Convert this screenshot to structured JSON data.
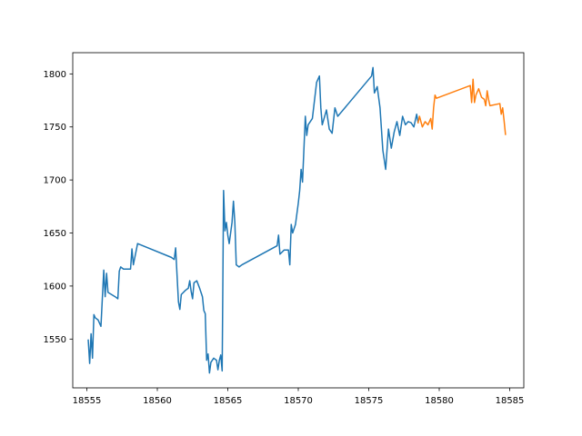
{
  "chart_data": {
    "type": "line",
    "title": "",
    "xlabel": "",
    "ylabel": "",
    "xlim": [
      18554.0,
      18586.0
    ],
    "ylim": [
      1504,
      1820
    ],
    "x_ticks": [
      18555,
      18560,
      18565,
      18570,
      18575,
      18580,
      18585
    ],
    "y_ticks": [
      1550,
      1600,
      1650,
      1700,
      1750,
      1800
    ],
    "grid": false,
    "legend": "none",
    "series": [
      {
        "color": "#1f77b4",
        "points": [
          [
            18555.1,
            1549
          ],
          [
            18555.2,
            1527
          ],
          [
            18555.3,
            1555
          ],
          [
            18555.4,
            1532
          ],
          [
            18555.5,
            1573
          ],
          [
            18555.6,
            1570
          ],
          [
            18555.8,
            1568
          ],
          [
            18556.0,
            1562
          ],
          [
            18556.2,
            1615
          ],
          [
            18556.3,
            1590
          ],
          [
            18556.4,
            1612
          ],
          [
            18556.5,
            1594
          ],
          [
            18557.0,
            1590
          ],
          [
            18557.2,
            1588
          ],
          [
            18557.3,
            1614
          ],
          [
            18557.4,
            1618
          ],
          [
            18557.6,
            1616
          ],
          [
            18558.1,
            1616
          ],
          [
            18558.2,
            1635
          ],
          [
            18558.3,
            1620
          ],
          [
            18558.6,
            1640
          ],
          [
            18561.0,
            1627
          ],
          [
            18561.2,
            1625
          ],
          [
            18561.3,
            1636
          ],
          [
            18561.4,
            1610
          ],
          [
            18561.5,
            1585
          ],
          [
            18561.6,
            1578
          ],
          [
            18561.7,
            1592
          ],
          [
            18562.0,
            1596
          ],
          [
            18562.2,
            1598
          ],
          [
            18562.3,
            1605
          ],
          [
            18562.4,
            1595
          ],
          [
            18562.5,
            1588
          ],
          [
            18562.6,
            1603
          ],
          [
            18562.8,
            1605
          ],
          [
            18563.0,
            1598
          ],
          [
            18563.2,
            1590
          ],
          [
            18563.3,
            1577
          ],
          [
            18563.4,
            1574
          ],
          [
            18563.5,
            1530
          ],
          [
            18563.6,
            1536
          ],
          [
            18563.7,
            1518
          ],
          [
            18563.8,
            1528
          ],
          [
            18564.0,
            1532
          ],
          [
            18564.2,
            1530
          ],
          [
            18564.3,
            1521
          ],
          [
            18564.4,
            1530
          ],
          [
            18564.5,
            1535
          ],
          [
            18564.6,
            1520
          ],
          [
            18564.7,
            1690
          ],
          [
            18564.8,
            1652
          ],
          [
            18564.9,
            1660
          ],
          [
            18565.0,
            1648
          ],
          [
            18565.1,
            1640
          ],
          [
            18565.3,
            1660
          ],
          [
            18565.4,
            1680
          ],
          [
            18565.5,
            1660
          ],
          [
            18565.6,
            1620
          ],
          [
            18565.8,
            1618
          ],
          [
            18566.0,
            1620
          ],
          [
            18568.5,
            1638
          ],
          [
            18568.6,
            1648
          ],
          [
            18568.7,
            1630
          ],
          [
            18569.0,
            1634
          ],
          [
            18569.3,
            1634
          ],
          [
            18569.4,
            1620
          ],
          [
            18569.5,
            1658
          ],
          [
            18569.6,
            1650
          ],
          [
            18569.8,
            1658
          ],
          [
            18570.0,
            1678
          ],
          [
            18570.1,
            1690
          ],
          [
            18570.2,
            1710
          ],
          [
            18570.3,
            1698
          ],
          [
            18570.5,
            1760
          ],
          [
            18570.6,
            1742
          ],
          [
            18570.7,
            1752
          ],
          [
            18571.0,
            1758
          ],
          [
            18571.3,
            1792
          ],
          [
            18571.5,
            1798
          ],
          [
            18571.6,
            1768
          ],
          [
            18571.7,
            1752
          ],
          [
            18572.0,
            1766
          ],
          [
            18572.2,
            1748
          ],
          [
            18572.4,
            1744
          ],
          [
            18572.6,
            1768
          ],
          [
            18572.8,
            1760
          ],
          [
            18575.2,
            1798
          ],
          [
            18575.3,
            1806
          ],
          [
            18575.4,
            1782
          ],
          [
            18575.6,
            1788
          ],
          [
            18575.8,
            1768
          ],
          [
            18576.0,
            1728
          ],
          [
            18576.2,
            1710
          ],
          [
            18576.4,
            1748
          ],
          [
            18576.6,
            1730
          ],
          [
            18576.8,
            1745
          ],
          [
            18577.0,
            1755
          ],
          [
            18577.2,
            1742
          ],
          [
            18577.4,
            1760
          ],
          [
            18577.6,
            1752
          ],
          [
            18577.8,
            1755
          ],
          [
            18578.0,
            1754
          ],
          [
            18578.2,
            1750
          ],
          [
            18578.4,
            1762
          ],
          [
            18578.5,
            1754
          ]
        ]
      },
      {
        "color": "#ff7f0e",
        "points": [
          [
            18578.5,
            1754
          ],
          [
            18578.6,
            1760
          ],
          [
            18578.8,
            1750
          ],
          [
            18579.0,
            1755
          ],
          [
            18579.2,
            1752
          ],
          [
            18579.4,
            1758
          ],
          [
            18579.5,
            1748
          ],
          [
            18579.6,
            1768
          ],
          [
            18579.7,
            1780
          ],
          [
            18579.8,
            1777
          ],
          [
            18582.2,
            1789
          ],
          [
            18582.3,
            1773
          ],
          [
            18582.4,
            1795
          ],
          [
            18582.5,
            1773
          ],
          [
            18582.6,
            1780
          ],
          [
            18582.8,
            1786
          ],
          [
            18583.0,
            1778
          ],
          [
            18583.2,
            1776
          ],
          [
            18583.3,
            1770
          ],
          [
            18583.4,
            1784
          ],
          [
            18583.5,
            1776
          ],
          [
            18583.6,
            1770
          ],
          [
            18584.3,
            1772
          ],
          [
            18584.4,
            1762
          ],
          [
            18584.5,
            1768
          ],
          [
            18584.6,
            1756
          ],
          [
            18584.7,
            1743
          ]
        ]
      }
    ]
  }
}
